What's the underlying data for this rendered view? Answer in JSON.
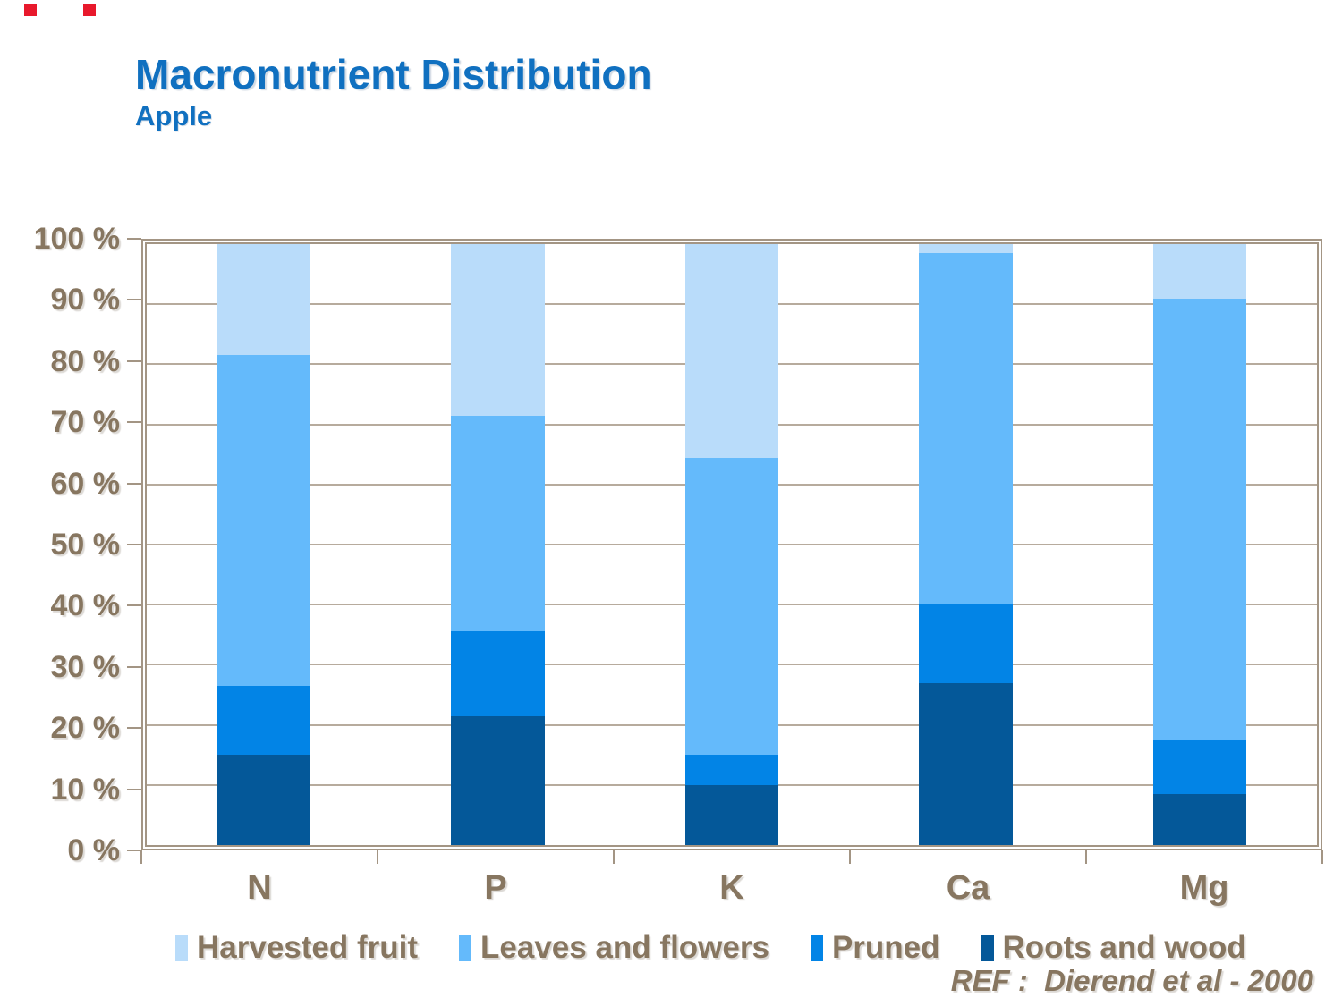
{
  "decoration": {
    "square_color": "#e8192c"
  },
  "header": {
    "title": "Macronutrient Distribution",
    "subtitle": "Apple",
    "title_color": "#1070c0"
  },
  "chart_data": {
    "type": "bar",
    "stacked": true,
    "title": "Macronutrient Distribution",
    "subtitle": "Apple",
    "categories": [
      "N",
      "P",
      "K",
      "Ca",
      "Mg"
    ],
    "series": [
      {
        "name": "Roots and wood",
        "color": "#045899",
        "values": [
          15,
          21.5,
          10,
          27,
          8.5
        ]
      },
      {
        "name": "Pruned",
        "color": "#0284e6",
        "values": [
          11.5,
          14,
          5,
          13,
          9
        ]
      },
      {
        "name": "Leaves and flowers",
        "color": "#64bafb",
        "values": [
          55,
          36,
          49.5,
          58.5,
          73.5
        ]
      },
      {
        "name": "Harvested fruit",
        "color": "#b9dcfa",
        "values": [
          18.5,
          28.5,
          35.5,
          1.5,
          9
        ]
      }
    ],
    "legend_order": [
      "Harvested fruit",
      "Leaves and flowers",
      "Pruned",
      "Roots and wood"
    ],
    "y_ticks": [
      "100 %",
      "90 %",
      "80 %",
      "70 %",
      "60 %",
      "50 %",
      "40 %",
      "30 %",
      "20 %",
      "10 %",
      "0 %"
    ],
    "ylim": [
      0,
      100
    ],
    "grid": true,
    "grid_color": "#b7ab9d",
    "axis_color": "#a39584",
    "label_color": "#877660",
    "legend_position": "bottom"
  },
  "footer": {
    "ref_label": "REF :  Dierend et al - 2000"
  }
}
